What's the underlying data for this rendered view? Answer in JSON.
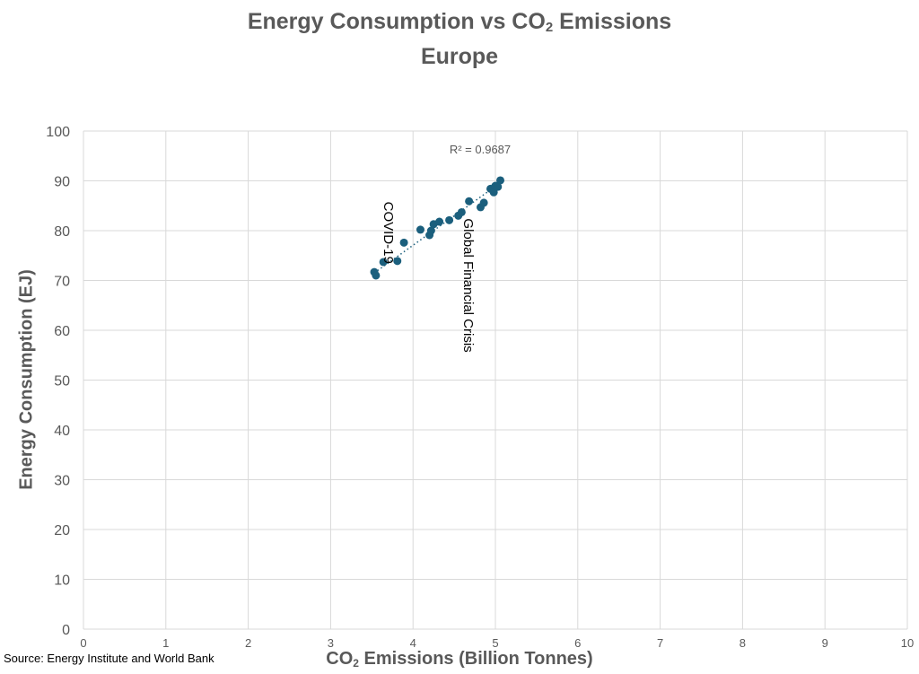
{
  "chart_data": {
    "type": "scatter",
    "title": {
      "line1_pre": "Energy Consumption vs CO",
      "line1_sub": "2",
      "line1_post": " Emissions",
      "line2": "Europe"
    },
    "xlabel": {
      "pre": "CO",
      "sub": "2",
      "post": " Emissions (Billion Tonnes)"
    },
    "ylabel": "Energy Consumption (EJ)",
    "xlim": [
      0,
      10
    ],
    "ylim": [
      0,
      100
    ],
    "xticks": [
      0,
      1,
      2,
      3,
      4,
      5,
      6,
      7,
      8,
      9,
      10
    ],
    "yticks": [
      0,
      10,
      20,
      30,
      40,
      50,
      60,
      70,
      80,
      90,
      100
    ],
    "grid": true,
    "marker_color": "#1b5f7d",
    "points": [
      {
        "x": 3.53,
        "y": 71.7
      },
      {
        "x": 3.55,
        "y": 71.0
      },
      {
        "x": 3.64,
        "y": 73.7
      },
      {
        "x": 3.81,
        "y": 73.9
      },
      {
        "x": 3.89,
        "y": 77.6
      },
      {
        "x": 4.09,
        "y": 80.2
      },
      {
        "x": 4.2,
        "y": 79.1
      },
      {
        "x": 4.22,
        "y": 80.0
      },
      {
        "x": 4.25,
        "y": 81.3
      },
      {
        "x": 4.32,
        "y": 81.8
      },
      {
        "x": 4.44,
        "y": 82.1
      },
      {
        "x": 4.55,
        "y": 83.0
      },
      {
        "x": 4.59,
        "y": 83.7
      },
      {
        "x": 4.68,
        "y": 85.9
      },
      {
        "x": 4.82,
        "y": 84.7
      },
      {
        "x": 4.86,
        "y": 85.6
      },
      {
        "x": 4.94,
        "y": 88.4
      },
      {
        "x": 4.98,
        "y": 87.7
      },
      {
        "x": 5.0,
        "y": 89.0
      },
      {
        "x": 5.03,
        "y": 88.8
      },
      {
        "x": 5.06,
        "y": 90.1
      }
    ],
    "trendline": {
      "x1": 3.53,
      "y1": 71.5,
      "x2": 5.06,
      "y2": 89.6
    },
    "r_squared_label": "R² = 0.9687",
    "annotations": [
      {
        "text": "COVID-19",
        "x": 3.65,
        "y": 79.6
      },
      {
        "text": "Global Financial Crisis",
        "x": 4.62,
        "y": 69.0
      }
    ]
  },
  "source": "Source: Energy Institute and World Bank"
}
